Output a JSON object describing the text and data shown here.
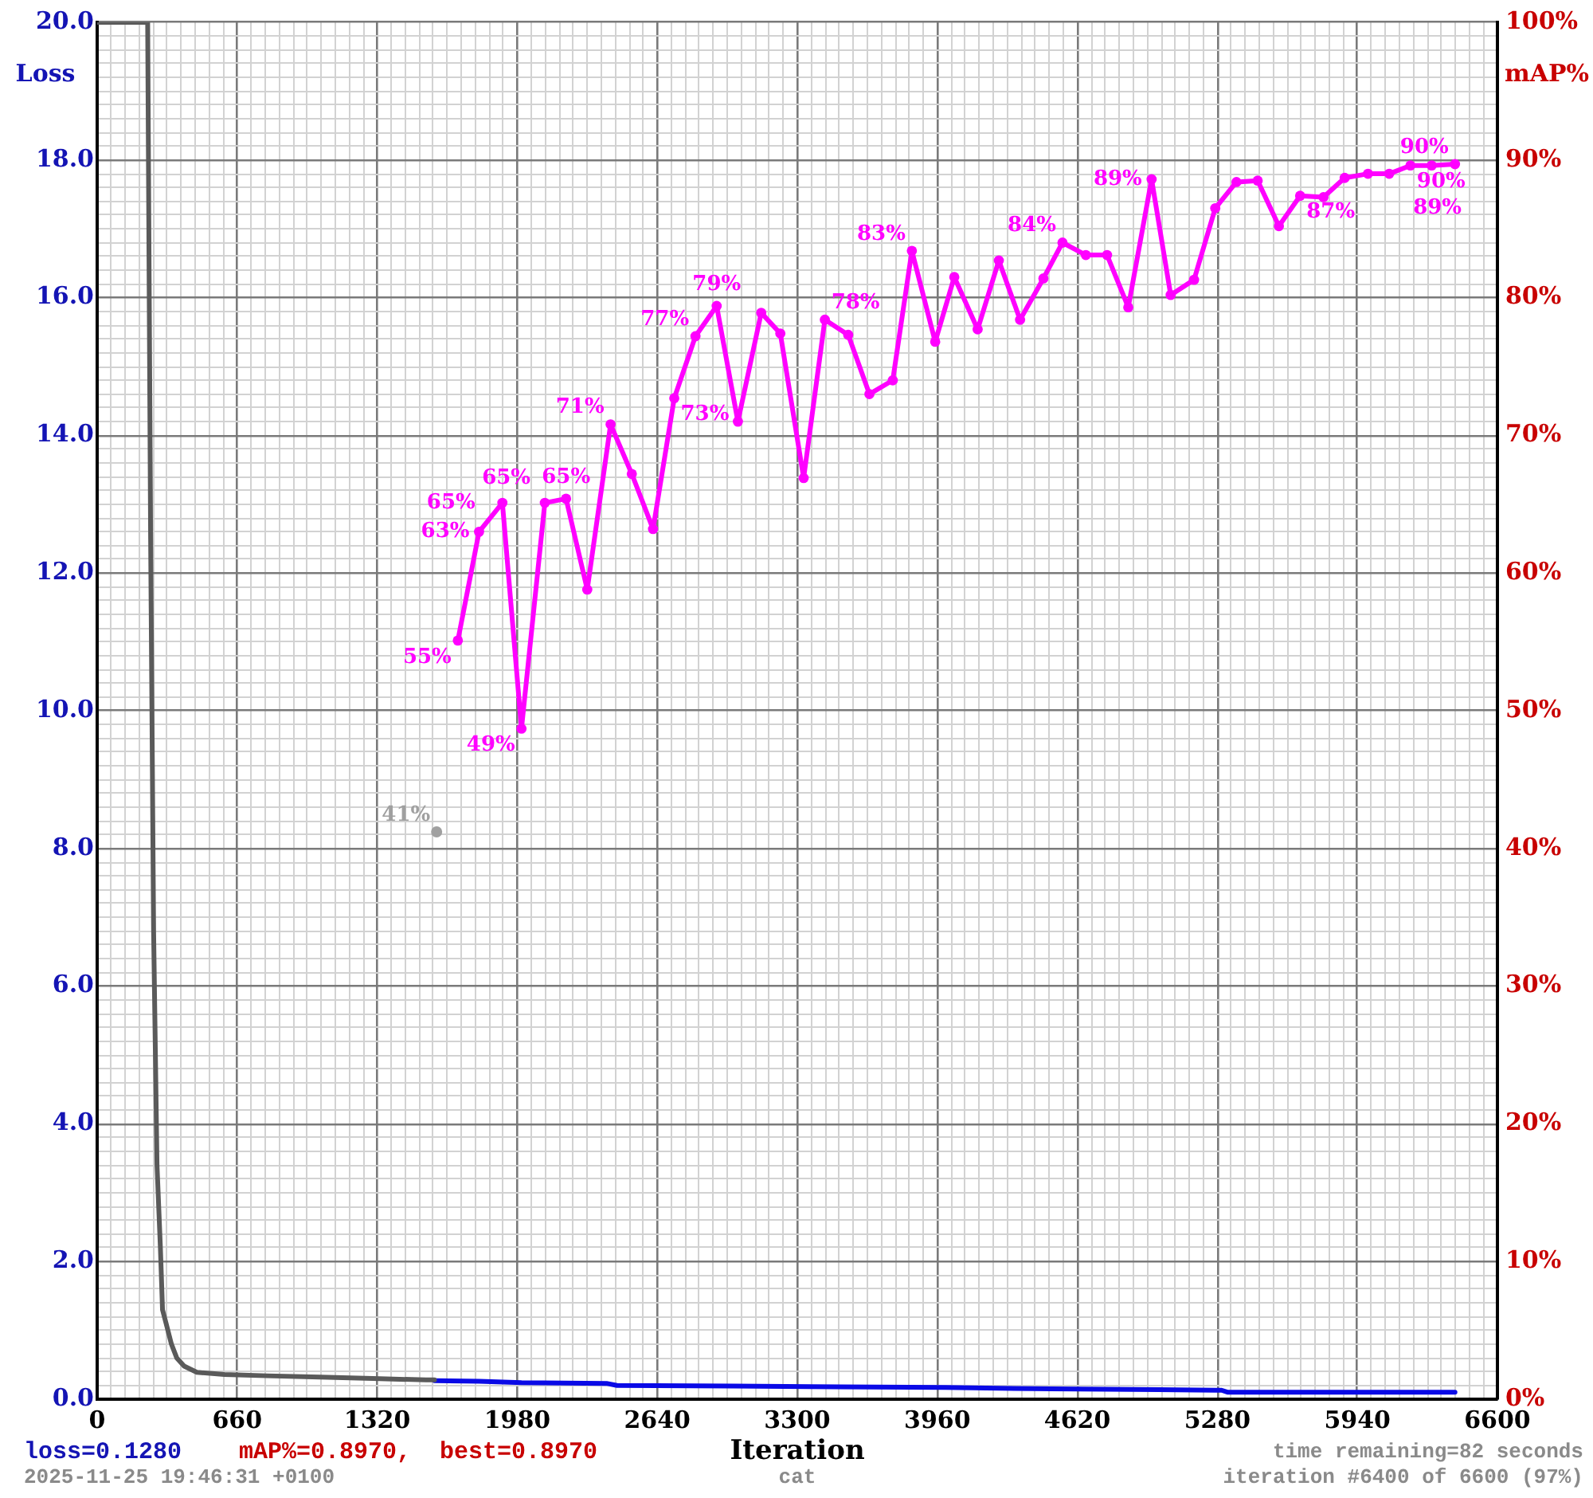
{
  "chart_data": {
    "type": "line",
    "grid": true,
    "xlabel": "Iteration",
    "ylabel": "Loss",
    "y2label": "mAP%",
    "xlim": [
      0,
      6600
    ],
    "ylim": [
      0,
      20
    ],
    "y2lim": [
      0,
      100
    ],
    "xticks": [
      0,
      {
        "value": 66,
        "label": null
      },
      {
        "value": 132,
        "label": null
      },
      {
        "value": 198,
        "label": null
      },
      {
        "value": 264,
        "label": null
      },
      {
        "value": 330,
        "label": null
      },
      {
        "value": 396,
        "label": null
      },
      {
        "value": 462,
        "label": null
      },
      {
        "value": 528,
        "label": null
      },
      {
        "value": 594,
        "label": null
      },
      660,
      {
        "value": 726,
        "label": null
      },
      {
        "value": 792,
        "label": null
      },
      {
        "value": 858,
        "label": null
      },
      {
        "value": 924,
        "label": null
      },
      {
        "value": 990,
        "label": null
      },
      {
        "value": 1056,
        "label": null
      },
      {
        "value": 1122,
        "label": null
      },
      {
        "value": 1188,
        "label": null
      },
      {
        "value": 1254,
        "label": null
      },
      1320,
      {
        "value": 1386,
        "label": null
      },
      {
        "value": 1452,
        "label": null
      },
      {
        "value": 1518,
        "label": null
      },
      {
        "value": 1584,
        "label": null
      },
      {
        "value": 1650,
        "label": null
      },
      {
        "value": 1716,
        "label": null
      },
      {
        "value": 1782,
        "label": null
      },
      {
        "value": 1848,
        "label": null
      },
      {
        "value": 1914,
        "label": null
      },
      1980,
      {
        "value": 2046,
        "label": null
      },
      {
        "value": 2112,
        "label": null
      },
      {
        "value": 2178,
        "label": null
      },
      {
        "value": 2244,
        "label": null
      },
      {
        "value": 2310,
        "label": null
      },
      {
        "value": 2376,
        "label": null
      },
      {
        "value": 2442,
        "label": null
      },
      {
        "value": 2508,
        "label": null
      },
      {
        "value": 2574,
        "label": null
      },
      2640,
      {
        "value": 2706,
        "label": null
      },
      {
        "value": 2772,
        "label": null
      },
      {
        "value": 2838,
        "label": null
      },
      {
        "value": 2904,
        "label": null
      },
      {
        "value": 2970,
        "label": null
      },
      {
        "value": 3036,
        "label": null
      },
      {
        "value": 3102,
        "label": null
      },
      {
        "value": 3168,
        "label": null
      },
      {
        "value": 3234,
        "label": null
      },
      3300,
      {
        "value": 3366,
        "label": null
      },
      {
        "value": 3432,
        "label": null
      },
      {
        "value": 3498,
        "label": null
      },
      {
        "value": 3564,
        "label": null
      },
      {
        "value": 3630,
        "label": null
      },
      {
        "value": 3696,
        "label": null
      },
      {
        "value": 3762,
        "label": null
      },
      {
        "value": 3828,
        "label": null
      },
      {
        "value": 3894,
        "label": null
      },
      3960,
      {
        "value": 4026,
        "label": null
      },
      {
        "value": 4092,
        "label": null
      },
      {
        "value": 4158,
        "label": null
      },
      {
        "value": 4224,
        "label": null
      },
      {
        "value": 4290,
        "label": null
      },
      {
        "value": 4356,
        "label": null
      },
      {
        "value": 4422,
        "label": null
      },
      {
        "value": 4488,
        "label": null
      },
      {
        "value": 4554,
        "label": null
      },
      4620,
      {
        "value": 4686,
        "label": null
      },
      {
        "value": 4752,
        "label": null
      },
      {
        "value": 4818,
        "label": null
      },
      {
        "value": 4884,
        "label": null
      },
      {
        "value": 4950,
        "label": null
      },
      {
        "value": 5016,
        "label": null
      },
      {
        "value": 5082,
        "label": null
      },
      {
        "value": 5148,
        "label": null
      },
      {
        "value": 5214,
        "label": null
      },
      5280,
      {
        "value": 5346,
        "label": null
      },
      {
        "value": 5412,
        "label": null
      },
      {
        "value": 5478,
        "label": null
      },
      {
        "value": 5544,
        "label": null
      },
      {
        "value": 5610,
        "label": null
      },
      {
        "value": 5676,
        "label": null
      },
      {
        "value": 5742,
        "label": null
      },
      {
        "value": 5808,
        "label": null
      },
      {
        "value": 5874,
        "label": null
      },
      5940,
      {
        "value": 6006,
        "label": null
      },
      {
        "value": 6072,
        "label": null
      },
      {
        "value": 6138,
        "label": null
      },
      {
        "value": 6204,
        "label": null
      },
      {
        "value": 6270,
        "label": null
      },
      {
        "value": 6336,
        "label": null
      },
      {
        "value": 6402,
        "label": null
      },
      {
        "value": 6468,
        "label": null
      },
      {
        "value": 6534,
        "label": null
      },
      6600
    ],
    "yticks": [
      {
        "value": 0,
        "label": "0.0"
      },
      {
        "value": 0.2,
        "label": null
      },
      {
        "value": 0.4,
        "label": null
      },
      {
        "value": 0.6,
        "label": null
      },
      {
        "value": 0.8,
        "label": null
      },
      {
        "value": 1,
        "label": null
      },
      {
        "value": 1.2,
        "label": null
      },
      {
        "value": 1.4,
        "label": null
      },
      {
        "value": 1.6,
        "label": null
      },
      {
        "value": 1.8,
        "label": null
      },
      {
        "value": 2,
        "label": "2.0"
      },
      {
        "value": 2.2,
        "label": null
      },
      {
        "value": 2.4,
        "label": null
      },
      {
        "value": 2.6,
        "label": null
      },
      {
        "value": 2.8,
        "label": null
      },
      {
        "value": 3,
        "label": null
      },
      {
        "value": 3.2,
        "label": null
      },
      {
        "value": 3.4,
        "label": null
      },
      {
        "value": 3.6,
        "label": null
      },
      {
        "value": 3.8,
        "label": null
      },
      {
        "value": 4,
        "label": "4.0"
      },
      {
        "value": 4.2,
        "label": null
      },
      {
        "value": 4.4,
        "label": null
      },
      {
        "value": 4.6,
        "label": null
      },
      {
        "value": 4.8,
        "label": null
      },
      {
        "value": 5,
        "label": null
      },
      {
        "value": 5.2,
        "label": null
      },
      {
        "value": 5.4,
        "label": null
      },
      {
        "value": 5.6,
        "label": null
      },
      {
        "value": 5.8,
        "label": null
      },
      {
        "value": 6,
        "label": "6.0"
      },
      {
        "value": 6.2,
        "label": null
      },
      {
        "value": 6.4,
        "label": null
      },
      {
        "value": 6.6,
        "label": null
      },
      {
        "value": 6.8,
        "label": null
      },
      {
        "value": 7,
        "label": null
      },
      {
        "value": 7.2,
        "label": null
      },
      {
        "value": 7.4,
        "label": null
      },
      {
        "value": 7.6,
        "label": null
      },
      {
        "value": 7.8,
        "label": null
      },
      {
        "value": 8,
        "label": "8.0"
      },
      {
        "value": 8.2,
        "label": null
      },
      {
        "value": 8.4,
        "label": null
      },
      {
        "value": 8.6,
        "label": null
      },
      {
        "value": 8.8,
        "label": null
      },
      {
        "value": 9,
        "label": null
      },
      {
        "value": 9.2,
        "label": null
      },
      {
        "value": 9.4,
        "label": null
      },
      {
        "value": 9.6,
        "label": null
      },
      {
        "value": 9.8,
        "label": null
      },
      {
        "value": 10,
        "label": "10.0"
      },
      {
        "value": 10.2,
        "label": null
      },
      {
        "value": 10.4,
        "label": null
      },
      {
        "value": 10.6,
        "label": null
      },
      {
        "value": 10.8,
        "label": null
      },
      {
        "value": 11,
        "label": null
      },
      {
        "value": 11.2,
        "label": null
      },
      {
        "value": 11.4,
        "label": null
      },
      {
        "value": 11.6,
        "label": null
      },
      {
        "value": 11.8,
        "label": null
      },
      {
        "value": 12,
        "label": "12.0"
      },
      {
        "value": 12.2,
        "label": null
      },
      {
        "value": 12.4,
        "label": null
      },
      {
        "value": 12.6,
        "label": null
      },
      {
        "value": 12.8,
        "label": null
      },
      {
        "value": 13,
        "label": null
      },
      {
        "value": 13.2,
        "label": null
      },
      {
        "value": 13.4,
        "label": null
      },
      {
        "value": 13.6,
        "label": null
      },
      {
        "value": 13.8,
        "label": null
      },
      {
        "value": 14,
        "label": "14.0"
      },
      {
        "value": 14.2,
        "label": null
      },
      {
        "value": 14.4,
        "label": null
      },
      {
        "value": 14.6,
        "label": null
      },
      {
        "value": 14.8,
        "label": null
      },
      {
        "value": 15,
        "label": null
      },
      {
        "value": 15.2,
        "label": null
      },
      {
        "value": 15.4,
        "label": null
      },
      {
        "value": 15.6,
        "label": null
      },
      {
        "value": 15.8,
        "label": null
      },
      {
        "value": 16,
        "label": "16.0"
      },
      {
        "value": 16.2,
        "label": null
      },
      {
        "value": 16.4,
        "label": null
      },
      {
        "value": 16.6,
        "label": null
      },
      {
        "value": 16.8,
        "label": null
      },
      {
        "value": 17,
        "label": null
      },
      {
        "value": 17.2,
        "label": null
      },
      {
        "value": 17.4,
        "label": null
      },
      {
        "value": 17.6,
        "label": null
      },
      {
        "value": 17.8,
        "label": null
      },
      {
        "value": 18,
        "label": "18.0"
      },
      {
        "value": 18.2,
        "label": null
      },
      {
        "value": 18.4,
        "label": null
      },
      {
        "value": 18.6,
        "label": null
      },
      {
        "value": 18.8,
        "label": null
      },
      {
        "value": 19,
        "label": null
      },
      {
        "value": 19.2,
        "label": null
      },
      {
        "value": 19.4,
        "label": null
      },
      {
        "value": 19.6,
        "label": null
      },
      {
        "value": 19.8,
        "label": null
      },
      {
        "value": 20,
        "label": "20.0"
      }
    ],
    "y2ticks": [
      {
        "value": 0,
        "label": "0%"
      },
      {
        "value": 10,
        "label": "10%"
      },
      {
        "value": 20,
        "label": "20%"
      },
      {
        "value": 30,
        "label": "30%"
      },
      {
        "value": 40,
        "label": "40%"
      },
      {
        "value": 50,
        "label": "50%"
      },
      {
        "value": 60,
        "label": "60%"
      },
      {
        "value": 70,
        "label": "70%"
      },
      {
        "value": 80,
        "label": "80%"
      },
      {
        "value": 90,
        "label": "90%"
      },
      {
        "value": 100,
        "label": "100%"
      }
    ],
    "series": [
      {
        "color": "#5a5a5a",
        "marker": "none",
        "x": [
          0,
          238,
          252,
          266,
          282,
          298,
          308,
          325,
          350,
          375,
          410,
          470,
          600,
          800,
          1050,
          1300,
          1550,
          1590
        ],
        "values": [
          20,
          20,
          12.5,
          6.8,
          3.4,
          2.2,
          1.3,
          1.1,
          0.8,
          0.6,
          0.48,
          0.39,
          0.36,
          0.34,
          0.32,
          0.3,
          0.28,
          0.28
        ]
      },
      {
        "color": "#0a0ae6",
        "marker": "none",
        "x": [
          1590,
          1800,
          2000,
          2400,
          2450,
          3000,
          3500,
          4000,
          4500,
          5000,
          5300,
          5330,
          5800,
          6400
        ],
        "values": [
          0.27,
          0.26,
          0.24,
          0.23,
          0.2,
          0.19,
          0.18,
          0.17,
          0.15,
          0.14,
          0.13,
          0.1,
          0.1,
          0.1
        ]
      },
      {
        "type": "scatter",
        "color": "#a0a0a0",
        "axis": "y2",
        "marker": "circle",
        "x": [
          1600
        ],
        "values": [
          41.2
        ],
        "value_labels": [
          "41%"
        ]
      },
      {
        "color": "#ff00ff",
        "axis": "y2",
        "marker": "circle",
        "x": [
          1700,
          1800,
          1910,
          2000,
          2110,
          2210,
          2310,
          2420,
          2520,
          2620,
          2720,
          2820,
          2920,
          3020,
          3130,
          3220,
          3330,
          3430,
          3540,
          3640,
          3750,
          3840,
          3950,
          4040,
          4150,
          4250,
          4350,
          4460,
          4550,
          4660,
          4760,
          4860,
          4970,
          5060,
          5170,
          5270,
          5370,
          5470,
          5570,
          5670,
          5780,
          5880,
          5990,
          6090,
          6190,
          6290,
          6400
        ],
        "values": [
          55.1,
          63,
          65.1,
          48.7,
          65.1,
          65.4,
          58.8,
          70.8,
          67.2,
          63.2,
          72.7,
          77.2,
          79.4,
          71.0,
          78.9,
          77.4,
          66.9,
          78.4,
          77.3,
          73.0,
          74.0,
          83.4,
          76.8,
          81.5,
          77.7,
          82.7,
          78.4,
          81.4,
          84.0,
          83.1,
          83.1,
          79.3,
          88.6,
          80.2,
          81.3,
          86.5,
          88.4,
          88.5,
          85.2,
          87.4,
          87.3,
          88.7,
          89.0,
          89.0,
          89.6,
          89.6,
          89.7
        ],
        "value_labels": [
          "55%",
          "63%",
          "65%",
          "49%",
          "65%",
          "65%",
          null,
          "71%",
          null,
          null,
          "73%",
          "77%",
          "79%",
          null,
          null,
          null,
          null,
          "78%",
          null,
          null,
          null,
          "83%",
          null,
          null,
          null,
          null,
          null,
          null,
          "84%",
          null,
          null,
          null,
          "89%",
          null,
          null,
          null,
          null,
          null,
          null,
          "87%",
          null,
          null,
          null,
          "89%",
          "90%",
          null,
          "90%"
        ]
      }
    ],
    "annotations": [
      "loss=0.1280",
      "mAP%=0.8970,  best=0.8970",
      "time remaining=82 seconds",
      "2025-11-25 19:46:31 +0100",
      "cat",
      "iteration #6400 of 6600 (97%)"
    ]
  }
}
